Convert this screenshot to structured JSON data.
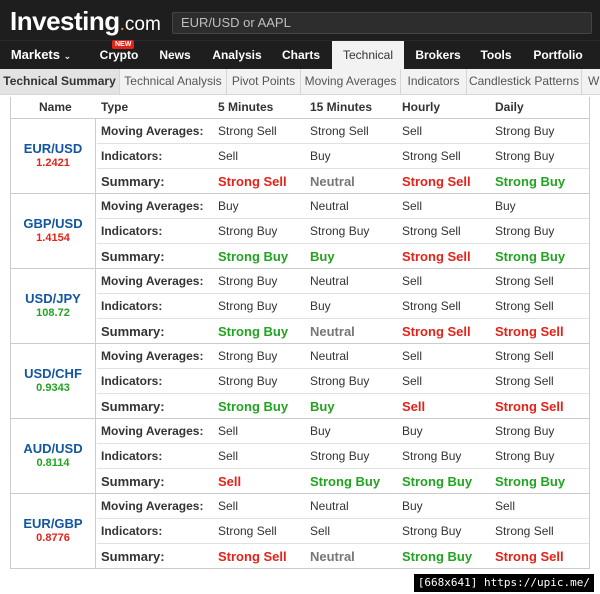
{
  "header": {
    "logo": "Investing",
    "logo_dot": ".",
    "logo_domain": "com",
    "search_placeholder": "EUR/USD or AAPL"
  },
  "nav": {
    "markets": "Markets",
    "crypto": "Crypto",
    "crypto_badge": "NEW",
    "news": "News",
    "analysis": "Analysis",
    "charts": "Charts",
    "technical": "Technical",
    "brokers": "Brokers",
    "tools": "Tools",
    "portfolio": "Portfolio"
  },
  "subnav": [
    "Technical Summary",
    "Technical Analysis",
    "Pivot Points",
    "Moving Averages",
    "Indicators",
    "Candlestick Patterns",
    "W"
  ],
  "columns": [
    "Name",
    "Type",
    "5 Minutes",
    "15 Minutes",
    "Hourly",
    "Daily"
  ],
  "row_labels": [
    "Moving Averages:",
    "Indicators:",
    "Summary:"
  ],
  "pairs": [
    {
      "name": "EUR/USD",
      "price": "1.2421",
      "price_color": "#e2231a",
      "ma": [
        "Strong Sell",
        "Strong Sell",
        "Sell",
        "Strong Buy"
      ],
      "ind": [
        "Sell",
        "Buy",
        "Strong Sell",
        "Strong Buy"
      ],
      "sum": [
        "Strong Sell",
        "Neutral",
        "Strong Sell",
        "Strong Buy"
      ],
      "sum_colors": [
        "red",
        "gray",
        "red",
        "green"
      ]
    },
    {
      "name": "GBP/USD",
      "price": "1.4154",
      "price_color": "#e2231a",
      "ma": [
        "Buy",
        "Neutral",
        "Sell",
        "Buy"
      ],
      "ind": [
        "Strong Buy",
        "Strong Buy",
        "Strong Sell",
        "Strong Buy"
      ],
      "sum": [
        "Strong Buy",
        "Buy",
        "Strong Sell",
        "Strong Buy"
      ],
      "sum_colors": [
        "green",
        "green",
        "red",
        "green"
      ]
    },
    {
      "name": "USD/JPY",
      "price": "108.72",
      "price_color": "#23a322",
      "ma": [
        "Strong Buy",
        "Neutral",
        "Sell",
        "Strong Sell"
      ],
      "ind": [
        "Strong Buy",
        "Buy",
        "Strong Sell",
        "Strong Sell"
      ],
      "sum": [
        "Strong Buy",
        "Neutral",
        "Strong Sell",
        "Strong Sell"
      ],
      "sum_colors": [
        "green",
        "gray",
        "red",
        "red"
      ]
    },
    {
      "name": "USD/CHF",
      "price": "0.9343",
      "price_color": "#23a322",
      "ma": [
        "Strong Buy",
        "Neutral",
        "Sell",
        "Strong Sell"
      ],
      "ind": [
        "Strong Buy",
        "Strong Buy",
        "Sell",
        "Strong Sell"
      ],
      "sum": [
        "Strong Buy",
        "Buy",
        "Sell",
        "Strong Sell"
      ],
      "sum_colors": [
        "green",
        "green",
        "red",
        "red"
      ]
    },
    {
      "name": "AUD/USD",
      "price": "0.8114",
      "price_color": "#23a322",
      "ma": [
        "Sell",
        "Buy",
        "Buy",
        "Strong Buy"
      ],
      "ind": [
        "Sell",
        "Strong Buy",
        "Strong Buy",
        "Strong Buy"
      ],
      "sum": [
        "Sell",
        "Strong Buy",
        "Strong Buy",
        "Strong Buy"
      ],
      "sum_colors": [
        "red",
        "green",
        "green",
        "green"
      ]
    },
    {
      "name": "EUR/GBP",
      "price": "0.8776",
      "price_color": "#e2231a",
      "ma": [
        "Sell",
        "Neutral",
        "Buy",
        "Sell"
      ],
      "ind": [
        "Strong Sell",
        "Sell",
        "Strong Buy",
        "Strong Sell"
      ],
      "sum": [
        "Strong Sell",
        "Neutral",
        "Strong Buy",
        "Strong Sell"
      ],
      "sum_colors": [
        "red",
        "gray",
        "green",
        "red"
      ]
    }
  ],
  "watermark": "[668x641] https://upic.me/"
}
